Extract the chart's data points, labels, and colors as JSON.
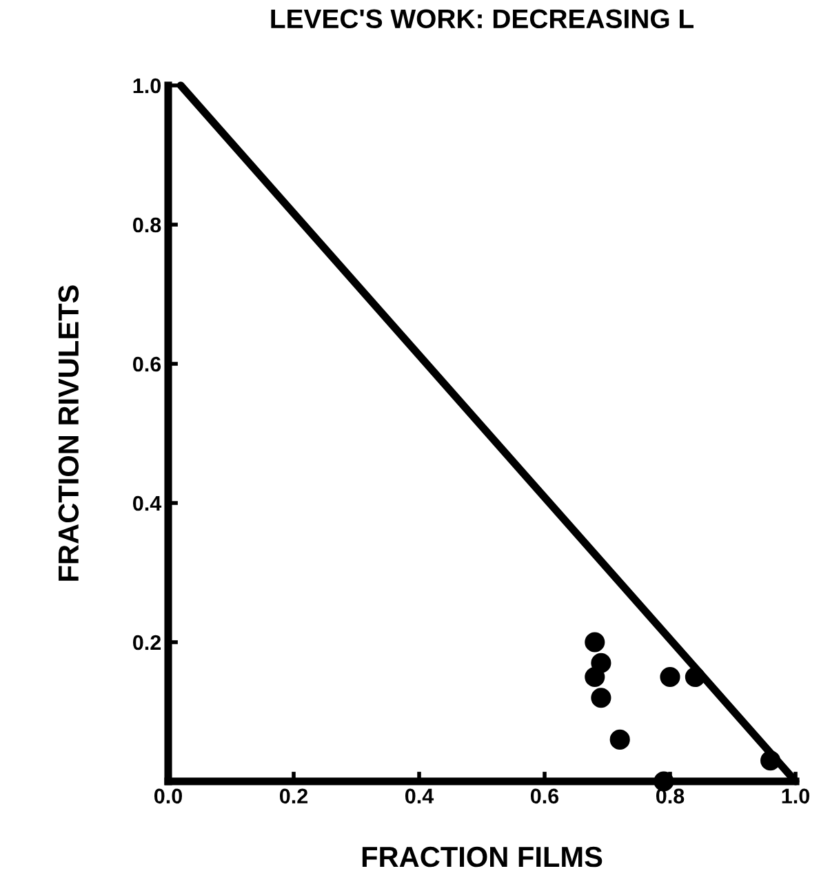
{
  "chart_data": {
    "type": "scatter",
    "title": "LEVEC'S WORK: DECREASING L",
    "xlabel": "FRACTION FILMS",
    "ylabel": "FRACTION RIVULETS",
    "x": [
      0.68,
      0.69,
      0.68,
      0.69,
      0.8,
      0.84,
      0.72,
      0.79,
      0.96
    ],
    "series": [
      {
        "color": "#000000",
        "marker": "circle",
        "values": [
          0.2,
          0.17,
          0.15,
          0.12,
          0.15,
          0.15,
          0.06,
          0.0,
          0.03
        ]
      },
      {
        "type": "line",
        "marker": "none",
        "color": "#000000",
        "x": [
          0.02,
          1.0
        ],
        "values": [
          1.0,
          0.0
        ]
      }
    ],
    "xlim": [
      0,
      1.0
    ],
    "ylim": [
      0,
      1.0
    ],
    "xticks": [
      {
        "value": 0,
        "label": "0.0"
      },
      0.2,
      0.4,
      0.6,
      0.8,
      {
        "value": 1,
        "label": "1.0"
      }
    ],
    "yticks": [
      0.2,
      0.4,
      0.6,
      0.8,
      {
        "value": 1,
        "label": "1.0"
      }
    ],
    "grid": false,
    "legend": false
  }
}
